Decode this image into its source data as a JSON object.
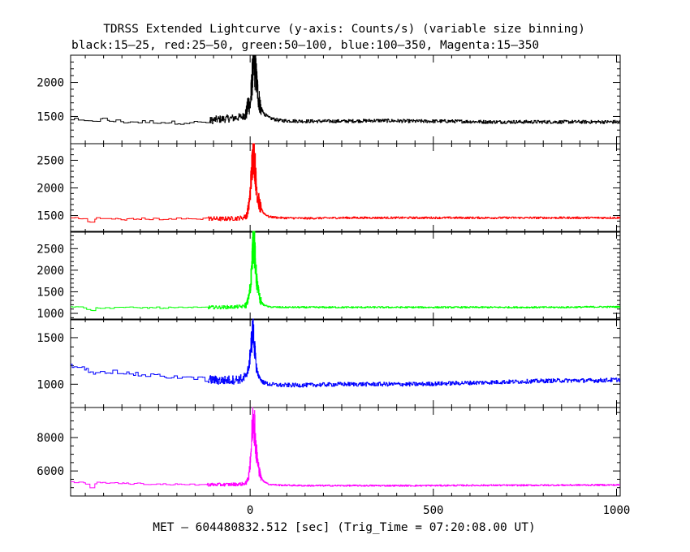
{
  "title": "TDRSS Extended Lightcurve (y-axis: Counts/s) (variable size binning)",
  "subtitle": "black:15–25, red:25–50, green:50–100, blue:100–350, Magenta:15–350",
  "xlabel": "MET – 604480832.512 [sec] (Trig_Time = 07:20:08.00 UT)",
  "chart_data": {
    "type": "line",
    "title": "TDRSS Extended Lightcurve (y-axis: Counts/s) (variable size binning)",
    "subtitle": "black:15–25, red:25–50, green:50–100, blue:100–350, Magenta:15–350",
    "xlabel": "MET – 604480832.512 [sec] (Trig_Time = 07:20:08.00 UT)",
    "xlim": [
      -490,
      1010
    ],
    "x_ticks": [
      0,
      500,
      1000
    ],
    "x_tick_labels": [
      "0",
      "500",
      "1000"
    ],
    "shared_x_axis": true,
    "grid": false,
    "panels": [
      {
        "band": "15-25",
        "color": "#000000",
        "ylim": [
          1100,
          2400
        ],
        "y_ticks": [
          1500,
          2000
        ],
        "y_tick_labels": [
          "1500",
          "2000"
        ],
        "points": [
          [
            -490,
            1460
          ],
          [
            -470,
            1440
          ],
          [
            -450,
            1420
          ],
          [
            -440,
            1450
          ],
          [
            -420,
            1440
          ],
          [
            -400,
            1460
          ],
          [
            -380,
            1430
          ],
          [
            -360,
            1430
          ],
          [
            -340,
            1420
          ],
          [
            -300,
            1420
          ],
          [
            -260,
            1420
          ],
          [
            -220,
            1410
          ],
          [
            -180,
            1410
          ],
          [
            -140,
            1410
          ],
          [
            -120,
            1420
          ],
          [
            -100,
            1450
          ],
          [
            -80,
            1460
          ],
          [
            -60,
            1470
          ],
          [
            -40,
            1480
          ],
          [
            -20,
            1500
          ],
          [
            -10,
            1560
          ],
          [
            -5,
            1700
          ],
          [
            0,
            1650
          ],
          [
            3,
            1900
          ],
          [
            6,
            2100
          ],
          [
            10,
            2250
          ],
          [
            14,
            2200
          ],
          [
            18,
            2000
          ],
          [
            22,
            1800
          ],
          [
            28,
            1650
          ],
          [
            36,
            1550
          ],
          [
            50,
            1480
          ],
          [
            80,
            1440
          ],
          [
            150,
            1430
          ],
          [
            250,
            1430
          ],
          [
            350,
            1440
          ],
          [
            450,
            1430
          ],
          [
            550,
            1430
          ],
          [
            650,
            1420
          ],
          [
            750,
            1420
          ],
          [
            850,
            1420
          ],
          [
            950,
            1420
          ],
          [
            1010,
            1420
          ]
        ],
        "noise": 25
      },
      {
        "band": "25-50",
        "color": "#ff0000",
        "ylim": [
          1200,
          2800
        ],
        "y_ticks": [
          1500,
          2000,
          2500
        ],
        "y_tick_labels": [
          "1500",
          "2000",
          "2500"
        ],
        "points": [
          [
            -490,
            1460
          ],
          [
            -470,
            1450
          ],
          [
            -450,
            1440
          ],
          [
            -440,
            1390
          ],
          [
            -430,
            1380
          ],
          [
            -420,
            1450
          ],
          [
            -380,
            1440
          ],
          [
            -340,
            1430
          ],
          [
            -300,
            1440
          ],
          [
            -260,
            1440
          ],
          [
            -220,
            1440
          ],
          [
            -180,
            1440
          ],
          [
            -140,
            1440
          ],
          [
            -120,
            1450
          ],
          [
            -80,
            1440
          ],
          [
            -40,
            1450
          ],
          [
            -20,
            1460
          ],
          [
            -10,
            1500
          ],
          [
            -3,
            1700
          ],
          [
            3,
            2200
          ],
          [
            8,
            2750
          ],
          [
            12,
            2550
          ],
          [
            16,
            2100
          ],
          [
            22,
            1800
          ],
          [
            28,
            1650
          ],
          [
            36,
            1550
          ],
          [
            50,
            1480
          ],
          [
            80,
            1460
          ],
          [
            150,
            1450
          ],
          [
            250,
            1460
          ],
          [
            350,
            1460
          ],
          [
            450,
            1460
          ],
          [
            550,
            1460
          ],
          [
            650,
            1460
          ],
          [
            750,
            1460
          ],
          [
            850,
            1460
          ],
          [
            950,
            1460
          ],
          [
            1010,
            1460
          ]
        ],
        "noise": 18
      },
      {
        "band": "50-100",
        "color": "#00ff00",
        "ylim": [
          850,
          2900
        ],
        "y_ticks": [
          1000,
          1500,
          2000,
          2500
        ],
        "y_tick_labels": [
          "1000",
          "1500",
          "2000",
          "2500"
        ],
        "points": [
          [
            -490,
            1150
          ],
          [
            -470,
            1140
          ],
          [
            -450,
            1130
          ],
          [
            -440,
            1060
          ],
          [
            -430,
            1050
          ],
          [
            -420,
            1130
          ],
          [
            -380,
            1130
          ],
          [
            -340,
            1130
          ],
          [
            -300,
            1130
          ],
          [
            -260,
            1130
          ],
          [
            -220,
            1130
          ],
          [
            -180,
            1130
          ],
          [
            -140,
            1130
          ],
          [
            -120,
            1140
          ],
          [
            -80,
            1140
          ],
          [
            -40,
            1150
          ],
          [
            -20,
            1160
          ],
          [
            -10,
            1200
          ],
          [
            -3,
            1400
          ],
          [
            3,
            1900
          ],
          [
            8,
            2800
          ],
          [
            12,
            2500
          ],
          [
            16,
            1900
          ],
          [
            22,
            1500
          ],
          [
            28,
            1300
          ],
          [
            36,
            1200
          ],
          [
            50,
            1150
          ],
          [
            80,
            1140
          ],
          [
            150,
            1140
          ],
          [
            250,
            1140
          ],
          [
            350,
            1140
          ],
          [
            450,
            1140
          ],
          [
            550,
            1140
          ],
          [
            650,
            1140
          ],
          [
            750,
            1140
          ],
          [
            850,
            1140
          ],
          [
            950,
            1150
          ],
          [
            1010,
            1150
          ]
        ],
        "noise": 18
      },
      {
        "band": "100-350",
        "color": "#0000ff",
        "ylim": [
          750,
          1700
        ],
        "y_ticks": [
          1000,
          1500
        ],
        "y_tick_labels": [
          "1000",
          "1500"
        ],
        "points": [
          [
            -490,
            1200
          ],
          [
            -470,
            1180
          ],
          [
            -450,
            1160
          ],
          [
            -440,
            1130
          ],
          [
            -430,
            1120
          ],
          [
            -420,
            1150
          ],
          [
            -380,
            1130
          ],
          [
            -340,
            1120
          ],
          [
            -300,
            1100
          ],
          [
            -260,
            1090
          ],
          [
            -220,
            1080
          ],
          [
            -180,
            1070
          ],
          [
            -140,
            1060
          ],
          [
            -120,
            1050
          ],
          [
            -80,
            1040
          ],
          [
            -40,
            1050
          ],
          [
            -20,
            1060
          ],
          [
            -10,
            1100
          ],
          [
            -3,
            1200
          ],
          [
            3,
            1450
          ],
          [
            8,
            1600
          ],
          [
            12,
            1400
          ],
          [
            16,
            1200
          ],
          [
            22,
            1100
          ],
          [
            28,
            1050
          ],
          [
            36,
            1020
          ],
          [
            50,
            1000
          ],
          [
            80,
            990
          ],
          [
            150,
            990
          ],
          [
            250,
            1000
          ],
          [
            350,
            1000
          ],
          [
            450,
            1000
          ],
          [
            550,
            1010
          ],
          [
            650,
            1020
          ],
          [
            750,
            1030
          ],
          [
            850,
            1040
          ],
          [
            950,
            1040
          ],
          [
            1010,
            1050
          ]
        ],
        "noise": 22
      },
      {
        "band": "15-350",
        "color": "#ff00ff",
        "ylim": [
          4500,
          9800
        ],
        "y_ticks": [
          6000,
          8000
        ],
        "y_tick_labels": [
          "6000",
          "8000"
        ],
        "points": [
          [
            -490,
            5350
          ],
          [
            -470,
            5300
          ],
          [
            -450,
            5250
          ],
          [
            -440,
            5050
          ],
          [
            -430,
            5000
          ],
          [
            -420,
            5300
          ],
          [
            -380,
            5280
          ],
          [
            -340,
            5250
          ],
          [
            -300,
            5230
          ],
          [
            -260,
            5210
          ],
          [
            -220,
            5200
          ],
          [
            -180,
            5190
          ],
          [
            -140,
            5180
          ],
          [
            -120,
            5180
          ],
          [
            -80,
            5180
          ],
          [
            -40,
            5200
          ],
          [
            -20,
            5220
          ],
          [
            -10,
            5300
          ],
          [
            -3,
            5800
          ],
          [
            3,
            7500
          ],
          [
            8,
            9500
          ],
          [
            12,
            8800
          ],
          [
            16,
            7300
          ],
          [
            22,
            6300
          ],
          [
            28,
            5700
          ],
          [
            36,
            5400
          ],
          [
            50,
            5200
          ],
          [
            80,
            5150
          ],
          [
            150,
            5120
          ],
          [
            250,
            5120
          ],
          [
            350,
            5120
          ],
          [
            450,
            5120
          ],
          [
            550,
            5130
          ],
          [
            650,
            5140
          ],
          [
            750,
            5140
          ],
          [
            850,
            5150
          ],
          [
            950,
            5160
          ],
          [
            1010,
            5160
          ]
        ],
        "noise": 45
      }
    ]
  }
}
